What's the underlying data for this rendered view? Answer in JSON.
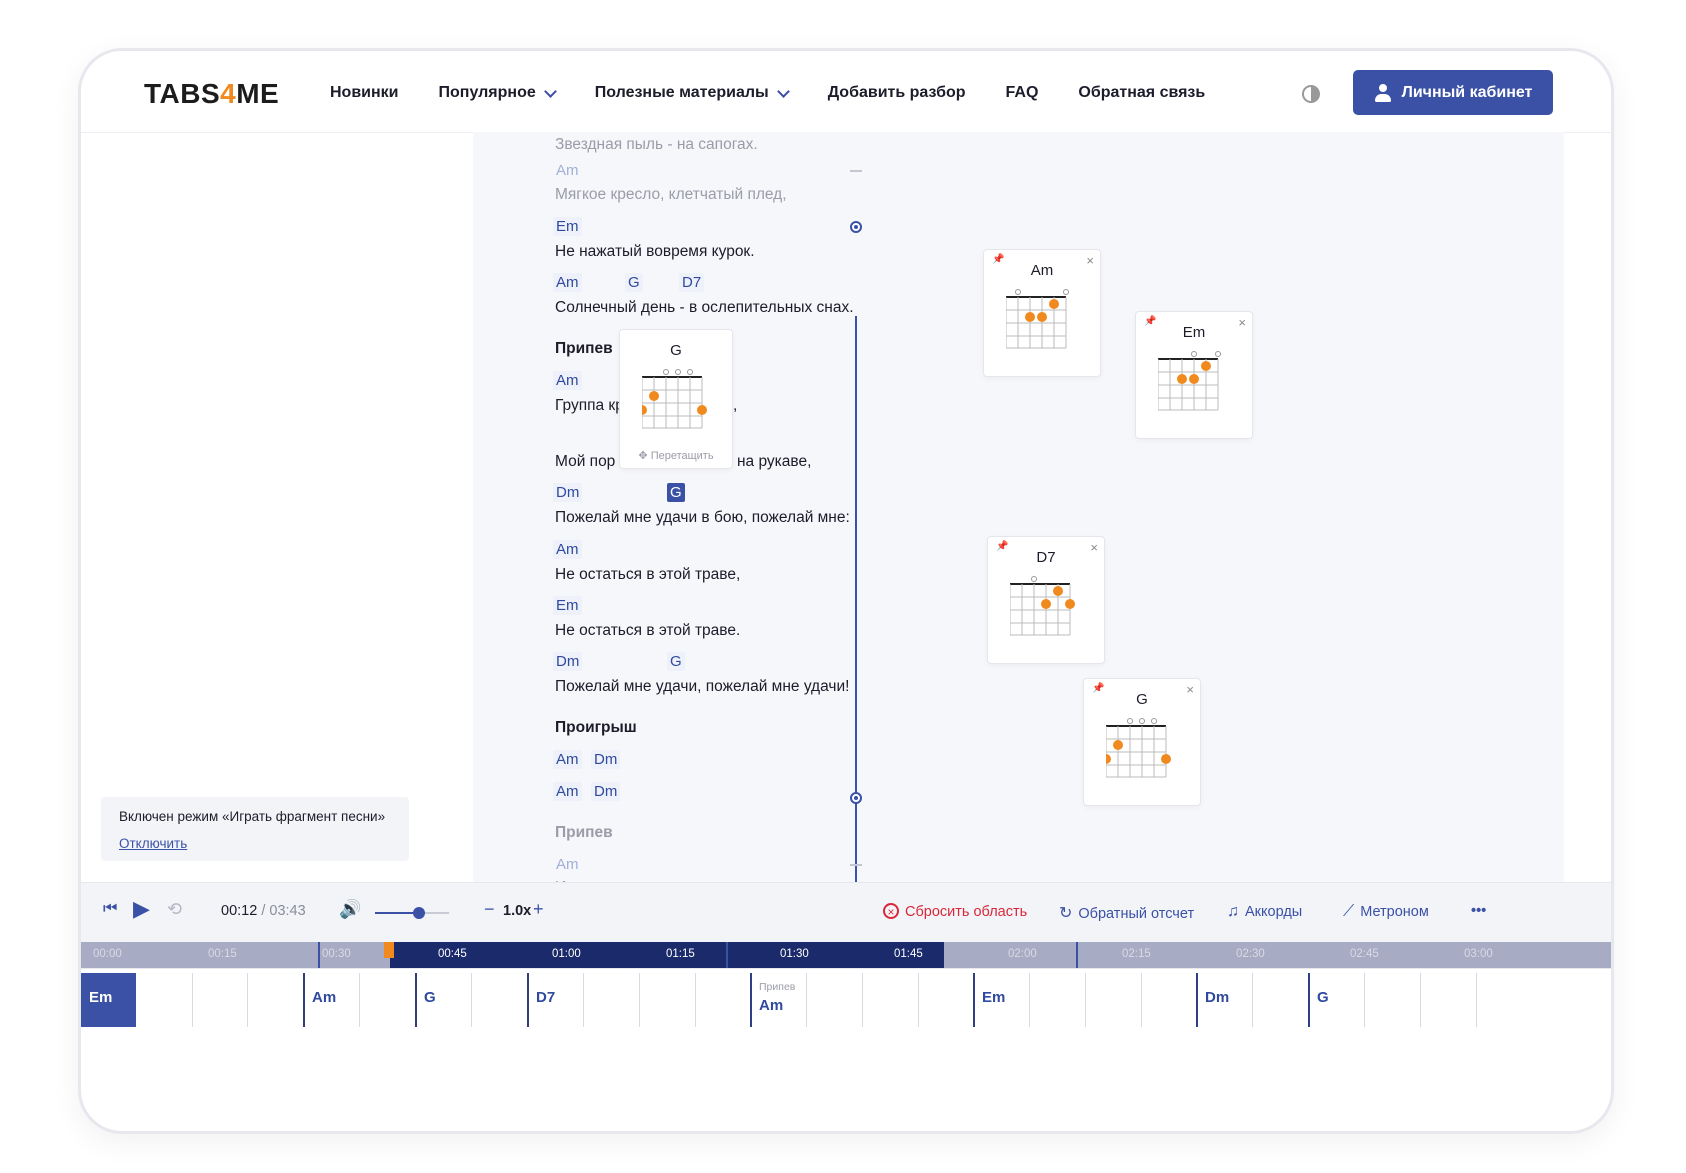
{
  "header": {
    "logo_pre": "TABS",
    "logo_four": "4",
    "logo_post": "ME",
    "nav": [
      "Новинки",
      "Популярное",
      "Полезные материалы",
      "Добавить разбор",
      "FAQ",
      "Обратная связь"
    ],
    "account": "Личный кабинет"
  },
  "lyrics": {
    "l0": "Звездная пыль - на сапогах.",
    "c1": "Am",
    "l1": "Мягкое кресло, клетчатый плед,",
    "c2": "Em",
    "l2": "Не нажатый вовремя курок.",
    "c3a": "Am",
    "c3b": "G",
    "c3c": "D7",
    "l3": "Солнечный день - в ослепительных снах.",
    "sec1": "Припев",
    "c4": "Am",
    "l4a": "Группа кр",
    "l4b": ",",
    "l5a": "Мой пор",
    "l5b": "на рукаве,",
    "c6a": "Dm",
    "c6b": "G",
    "l6": "Пожелай мне удачи в бою, пожелай мне:",
    "c7": "Am",
    "l7": "Не остаться в этой траве,",
    "c8": "Em",
    "l8": "Не остаться в этой траве.",
    "c9a": "Dm",
    "c9b": "G",
    "l9": "Пожелай мне удачи, пожелай мне удачи!",
    "sec2": "Проигрыш",
    "c10a": "Am",
    "c10b": "Dm",
    "c11a": "Am",
    "c11b": "Dm",
    "sec3": "Припев",
    "c12": "Am",
    "l12": "И есть чем платить, но я не хочу"
  },
  "cards": {
    "popup": "G",
    "drag": "Перетащить",
    "am": "Am",
    "em": "Em",
    "d7": "D7",
    "g": "G",
    "close": "×"
  },
  "notice": {
    "text": "Включен режим «Играть фрагмент песни»",
    "link": "Отключить"
  },
  "player": {
    "current": "00:12",
    "total": "/ 03:43",
    "speed": "1.0x",
    "minus": "−",
    "plus": "+",
    "reset": "Сбросить область",
    "countdown": "Обратный отсчет",
    "chords": "Аккорды",
    "metronome": "Метроном",
    "more": "•••",
    "volume": 0.6
  },
  "timeline": {
    "ticks": [
      "00:00",
      "00:15",
      "00:30",
      "00:45",
      "01:00",
      "01:15",
      "01:30",
      "01:45",
      "02:00",
      "02:15",
      "02:30",
      "02:45",
      "03:00"
    ]
  },
  "strip": {
    "chords": [
      "Em",
      "Am",
      "G",
      "D7",
      "Am",
      "Em",
      "Dm",
      "G"
    ],
    "section_label": "Припев"
  },
  "colors": {
    "accent": "#3a51a6",
    "orange": "#f08a1e",
    "dark_selection": "#1b2a6b",
    "red": "#d7283a"
  }
}
